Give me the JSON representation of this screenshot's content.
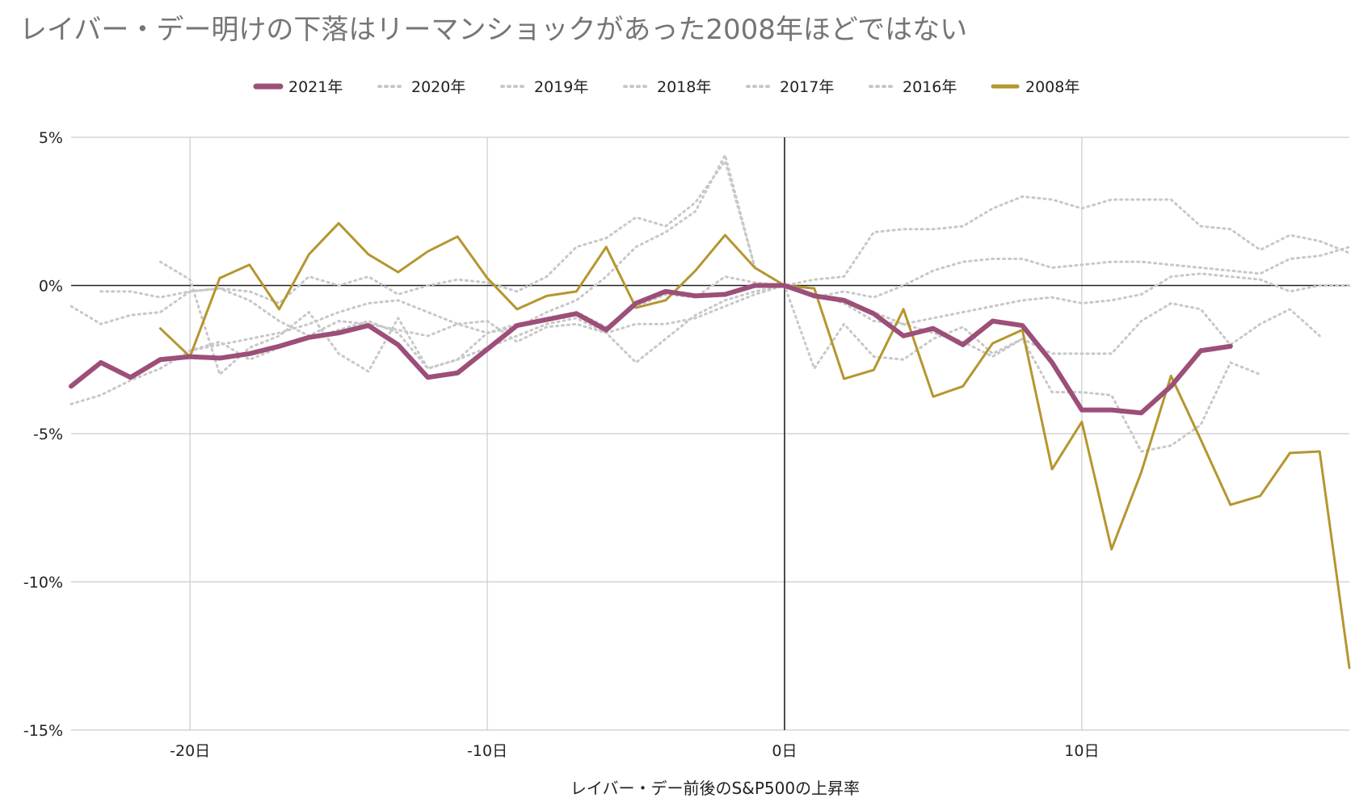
{
  "chart_data": {
    "type": "line",
    "title": "レイバー・デー明けの下落はリーマンショックがあった2008年ほどではない",
    "xlabel": "レイバー・デー前後のS&P500の上昇率",
    "ylabel": "",
    "xlim": [
      -24,
      19
    ],
    "ylim": [
      -15,
      5
    ],
    "x_ticks": [
      -20,
      -10,
      0,
      10
    ],
    "x_tick_labels": [
      "-20日",
      "-10日",
      "0日",
      "10日"
    ],
    "y_ticks": [
      5,
      0,
      -5,
      -10,
      -15
    ],
    "y_tick_labels": [
      "5%",
      "0%",
      "-5%",
      "-10%",
      "-15%"
    ],
    "grid": true,
    "legend_position": "top",
    "series": [
      {
        "name": "2021年",
        "style": "solid-thick",
        "color": "#9c4f78",
        "x": [
          -24,
          -23,
          -22,
          -21,
          -20,
          -19,
          -18,
          -17,
          -16,
          -15,
          -14,
          -13,
          -12,
          -11,
          -10,
          -9,
          -8,
          -7,
          -6,
          -5,
          -4,
          -3,
          -2,
          -1,
          0,
          1,
          2,
          3,
          4,
          5,
          6,
          7,
          8,
          9,
          10,
          11,
          12,
          13,
          14,
          15
        ],
        "y": [
          -3.4,
          -2.6,
          -3.1,
          -2.5,
          -2.4,
          -2.45,
          -2.3,
          -2.05,
          -1.75,
          -1.6,
          -1.35,
          -2.0,
          -3.1,
          -2.95,
          -2.15,
          -1.35,
          -1.15,
          -0.95,
          -1.5,
          -0.6,
          -0.2,
          -0.35,
          -0.3,
          0.0,
          0.0,
          -0.35,
          -0.5,
          -0.95,
          -1.7,
          -1.45,
          -2.0,
          -1.2,
          -1.35,
          -2.6,
          -4.2,
          -4.2,
          -4.3,
          -3.4,
          -2.2,
          -2.05
        ]
      },
      {
        "name": "2020年",
        "style": "dotted",
        "color": "#c8c8c8",
        "x": [
          -24,
          -23,
          -22,
          -21,
          -20,
          -19,
          -18,
          -17,
          -16,
          -15,
          -14,
          -13,
          -12,
          -11,
          -10,
          -9,
          -8,
          -7,
          -6,
          -5,
          -4,
          -3,
          -2,
          -1,
          0,
          1,
          2,
          3,
          4,
          5,
          6,
          7,
          8,
          9,
          10,
          11,
          12,
          13,
          14,
          15,
          16,
          17,
          18,
          19
        ],
        "y": [
          -4.0,
          -3.7,
          -3.2,
          -2.8,
          -2.2,
          -2.0,
          -1.8,
          -1.6,
          -1.3,
          -0.9,
          -0.6,
          -0.5,
          -0.9,
          -1.3,
          -1.6,
          -1.4,
          -0.9,
          -0.5,
          0.3,
          1.3,
          1.8,
          2.5,
          4.4,
          0.6,
          0.0,
          -2.8,
          -1.3,
          -2.4,
          -2.5,
          -1.8,
          -1.4,
          -2.3,
          -1.8,
          -3.6,
          -3.6,
          -3.7,
          -5.6,
          -5.4,
          -4.7,
          -2.6,
          -3.0,
          null,
          null,
          null
        ]
      },
      {
        "name": "2019年",
        "style": "dotted",
        "color": "#c8c8c8",
        "x": [
          -21,
          -20,
          -19,
          -18,
          -17,
          -16,
          -15,
          -14,
          -13,
          -12,
          -11,
          -10,
          -9,
          -8,
          -7,
          -6,
          -5,
          -4,
          -3,
          -2,
          -1,
          0,
          1,
          2,
          3,
          4,
          5,
          6,
          7,
          8,
          9,
          10,
          11,
          12,
          13,
          14,
          15,
          16,
          17,
          18,
          19
        ],
        "y": [
          0.8,
          0.2,
          -3.0,
          -2.1,
          -1.7,
          -0.9,
          -2.3,
          -2.9,
          -1.1,
          -2.8,
          -2.5,
          -1.6,
          -1.3,
          -1.1,
          -0.9,
          -1.4,
          -0.7,
          -0.3,
          -0.4,
          0.3,
          0.1,
          0.0,
          0.2,
          0.3,
          1.8,
          1.9,
          1.9,
          2.0,
          2.6,
          3.0,
          2.9,
          2.6,
          2.9,
          2.9,
          2.9,
          2.0,
          1.9,
          1.2,
          1.7,
          1.5,
          1.1
        ]
      },
      {
        "name": "2018年",
        "style": "dotted",
        "color": "#c8c8c8",
        "x": [
          -24,
          -23,
          -22,
          -21,
          -20,
          -19,
          -18,
          -17,
          -16,
          -15,
          -14,
          -13,
          -12,
          -11,
          -10,
          -9,
          -8,
          -7,
          -6,
          -5,
          -4,
          -3,
          -2,
          -1,
          0,
          1,
          2,
          3,
          4,
          5,
          6,
          7,
          8,
          9,
          10,
          11,
          12,
          13,
          14,
          15,
          16,
          17,
          18,
          19
        ],
        "y": [
          -0.7,
          -1.3,
          -1.0,
          -0.9,
          -0.2,
          -0.1,
          -0.2,
          -0.6,
          0.3,
          0.0,
          0.3,
          -0.3,
          0.0,
          0.2,
          0.1,
          -0.2,
          0.3,
          1.3,
          1.6,
          2.3,
          2.0,
          2.8,
          4.2,
          0.6,
          0.0,
          -0.4,
          -0.2,
          -0.4,
          0.0,
          0.5,
          0.8,
          0.9,
          0.9,
          0.6,
          0.7,
          0.8,
          0.8,
          0.7,
          0.6,
          0.5,
          0.4,
          0.9,
          1.0,
          1.3
        ]
      },
      {
        "name": "2017年",
        "style": "dotted",
        "color": "#c8c8c8",
        "x": [
          -23,
          -22,
          -21,
          -20,
          -19,
          -18,
          -17,
          -16,
          -15,
          -14,
          -13,
          -12,
          -11,
          -10,
          -9,
          -8,
          -7,
          -6,
          -5,
          -4,
          -3,
          -2,
          -1,
          0,
          1,
          2,
          3,
          4,
          5,
          6,
          7,
          8,
          9,
          10,
          11,
          12,
          13,
          14,
          15,
          16,
          17,
          18,
          19
        ],
        "y": [
          -0.2,
          -0.2,
          -0.4,
          -0.2,
          -0.1,
          -0.5,
          -1.2,
          -1.7,
          -1.2,
          -1.3,
          -1.5,
          -1.7,
          -1.3,
          -1.2,
          -1.9,
          -1.4,
          -1.3,
          -1.6,
          -1.3,
          -1.3,
          -1.1,
          -0.7,
          -0.3,
          0.0,
          -0.3,
          -0.6,
          -1.2,
          -1.3,
          -1.1,
          -0.9,
          -0.7,
          -0.5,
          -0.4,
          -0.6,
          -0.5,
          -0.3,
          0.3,
          0.4,
          0.3,
          0.2,
          -0.2,
          0.0,
          0.0
        ]
      },
      {
        "name": "2016年",
        "style": "dotted",
        "color": "#c8c8c8",
        "x": [
          -20,
          -19,
          -18,
          -17,
          -16,
          -15,
          -14,
          -13,
          -12,
          -11,
          -10,
          -9,
          -8,
          -7,
          -6,
          -5,
          -4,
          -3,
          -2,
          -1,
          0,
          1,
          2,
          3,
          4,
          5,
          6,
          7,
          8,
          9,
          10,
          11,
          12,
          13,
          14,
          15,
          16,
          17,
          18
        ],
        "y": [
          -2.2,
          -1.9,
          -2.5,
          -2.1,
          -1.8,
          -1.5,
          -1.2,
          -1.6,
          -2.8,
          -2.5,
          -2.1,
          -1.7,
          -1.3,
          -1.1,
          -1.6,
          -2.6,
          -1.8,
          -1.0,
          -0.5,
          -0.2,
          0.0,
          -0.3,
          -0.5,
          -0.9,
          -1.3,
          -1.6,
          -1.9,
          -2.4,
          -1.8,
          -2.3,
          -2.3,
          -2.3,
          -1.2,
          -0.6,
          -0.8,
          -2.0,
          -1.3,
          -0.8,
          -1.7
        ]
      },
      {
        "name": "2008年",
        "style": "solid",
        "color": "#b5962f",
        "x": [
          -21,
          -20,
          -19,
          -18,
          -17,
          -16,
          -15,
          -14,
          -13,
          -12,
          -11,
          -10,
          -9,
          -8,
          -7,
          -6,
          -5,
          -4,
          -3,
          -2,
          -1,
          0,
          1,
          2,
          3,
          4,
          5,
          6,
          7,
          8,
          9,
          10,
          11,
          12,
          13,
          14,
          15,
          16,
          17,
          18,
          19
        ],
        "y": [
          -1.45,
          -2.4,
          0.25,
          0.7,
          -0.8,
          1.05,
          2.1,
          1.05,
          0.45,
          1.15,
          1.65,
          0.25,
          -0.8,
          -0.35,
          -0.2,
          1.3,
          -0.75,
          -0.5,
          0.5,
          1.7,
          0.6,
          0.0,
          -0.1,
          -3.15,
          -2.85,
          -0.8,
          -3.75,
          -3.4,
          -1.95,
          -1.5,
          -6.2,
          -4.6,
          -8.9,
          -6.3,
          -3.05,
          -5.2,
          -7.4,
          -7.1,
          -5.65,
          -5.6,
          -12.9
        ]
      }
    ]
  }
}
